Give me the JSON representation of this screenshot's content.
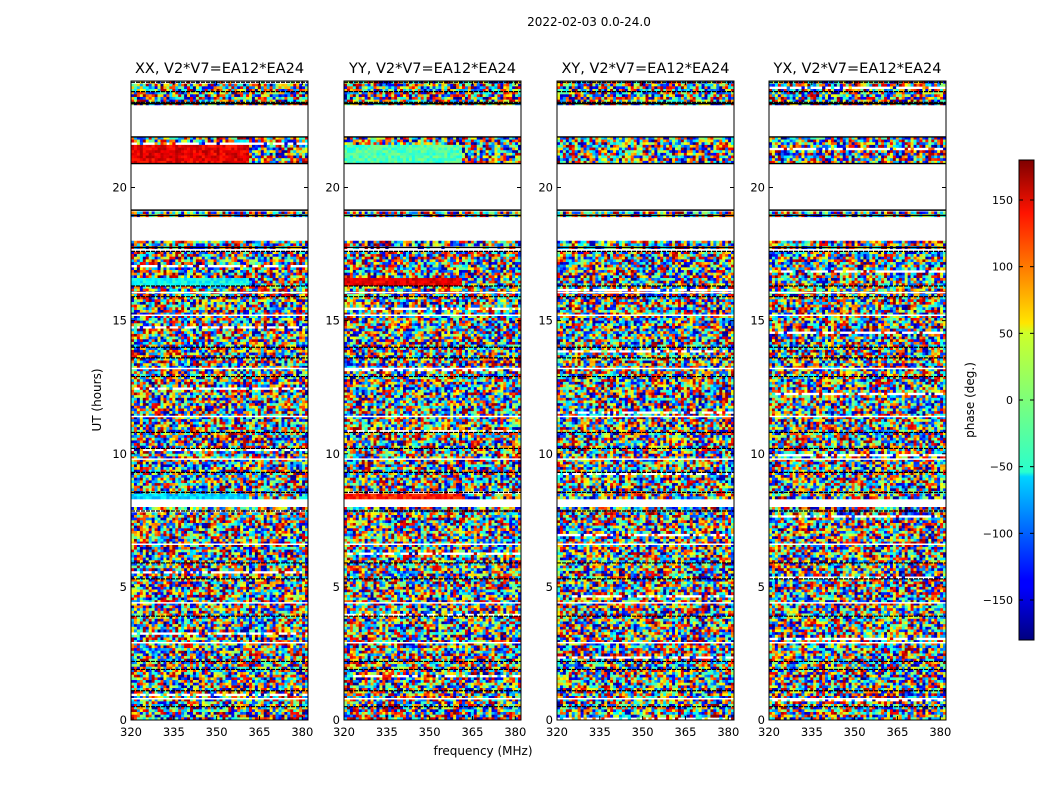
{
  "chart_data": {
    "type": "heatmap",
    "suptitle": "2022-02-03 0.0-24.0",
    "xlabel": "frequency (MHz)",
    "ylabel": "UT (hours)",
    "xlim": [
      320,
      382
    ],
    "ylim": [
      0,
      24
    ],
    "xticks": [
      320,
      335,
      350,
      365,
      380
    ],
    "yticks": [
      0,
      5,
      10,
      15,
      20
    ],
    "panels": [
      {
        "name": "XX",
        "title": "XX, V2*V7=EA12*EA24"
      },
      {
        "name": "YY",
        "title": "YY, V2*V7=EA12*EA24"
      },
      {
        "name": "XY",
        "title": "XY, V2*V7=EA12*EA24"
      },
      {
        "name": "YX",
        "title": "YX, V2*V7=EA12*EA24"
      }
    ],
    "colorbar": {
      "label": "phase (deg.)",
      "range": [
        -180,
        180
      ],
      "ticks": [
        150,
        100,
        50,
        0,
        -50,
        -100,
        -150
      ],
      "tick_labels": [
        "150",
        "100",
        "50",
        "0",
        "−50",
        "−100",
        "−150"
      ],
      "colormap": "jet"
    },
    "data_gaps_ut": [
      [
        0.35,
        0.45
      ],
      [
        8.0,
        8.3
      ],
      [
        17.6,
        17.75
      ],
      [
        18.0,
        18.95
      ],
      [
        19.15,
        20.9
      ],
      [
        21.9,
        23.15
      ]
    ],
    "coherent_bands": [
      {
        "ut": [
          8.3,
          8.5
        ],
        "panels": {
          "XX": "cyan-blue",
          "YY": "red-orange",
          "XY": "noise",
          "YX": "noise"
        }
      },
      {
        "ut": [
          20.9,
          21.6
        ],
        "panels": {
          "XX": "red",
          "YY": "green-cyan",
          "XY": "noise",
          "YX": "noise"
        }
      },
      {
        "ut": [
          16.3,
          16.6
        ],
        "panels": {
          "XX": "cyan",
          "YY": "red",
          "XY": "noise",
          "YX": "noise"
        }
      }
    ]
  }
}
